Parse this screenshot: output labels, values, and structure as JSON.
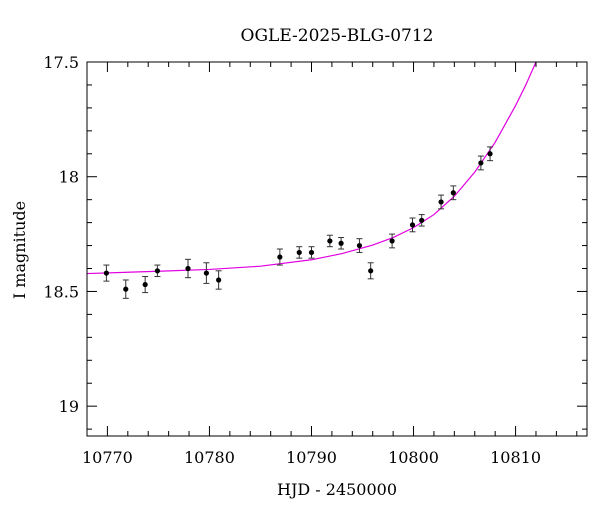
{
  "chart_data": {
    "type": "scatter",
    "title": "OGLE-2025-BLG-0712",
    "xlabel": "HJD - 2450000",
    "ylabel": "I magnitude",
    "xlim": [
      10768,
      10817
    ],
    "ylim": [
      17.5,
      19.13
    ],
    "y_inverted": true,
    "x_ticks": [
      10770,
      10780,
      10790,
      10800,
      10810
    ],
    "y_ticks": [
      17.5,
      18,
      18.5,
      19
    ],
    "x_tick_labels": [
      "10770",
      "10780",
      "10790",
      "10800",
      "10810"
    ],
    "y_tick_labels": [
      "17.5",
      "18",
      "18.5",
      "19"
    ],
    "x_minor_step": 2,
    "y_minor_step": 0.1,
    "grid": false,
    "legend": "none",
    "colors": {
      "points": "#000000",
      "model": "#e000e0",
      "axes": "#000000"
    },
    "series": [
      {
        "type": "errorbar",
        "x": [
          10769.9,
          10771.8,
          10773.7,
          10774.9,
          10777.9,
          10779.7,
          10780.9,
          10786.9,
          10788.8,
          10790.0,
          10791.8,
          10792.9,
          10794.7,
          10795.8,
          10797.9,
          10799.9,
          10800.8,
          10802.7,
          10803.9,
          10806.6,
          10807.5
        ],
        "y": [
          18.42,
          18.49,
          18.47,
          18.41,
          18.4,
          18.42,
          18.45,
          18.35,
          18.33,
          18.33,
          18.28,
          18.29,
          18.3,
          18.41,
          18.28,
          18.21,
          18.19,
          18.11,
          18.07,
          17.94,
          17.9
        ],
        "yerr": [
          0.035,
          0.04,
          0.035,
          0.025,
          0.04,
          0.045,
          0.04,
          0.035,
          0.025,
          0.025,
          0.025,
          0.025,
          0.03,
          0.035,
          0.03,
          0.03,
          0.025,
          0.03,
          0.03,
          0.03,
          0.03
        ]
      },
      {
        "type": "line",
        "x": [
          10768,
          10775,
          10780,
          10785,
          10790,
          10793,
          10796,
          10798,
          10800,
          10802,
          10804,
          10806,
          10808,
          10809,
          10810,
          10811,
          10811.5,
          10812
        ],
        "y": [
          18.422,
          18.412,
          18.404,
          18.39,
          18.362,
          18.335,
          18.298,
          18.265,
          18.222,
          18.165,
          18.085,
          17.98,
          17.85,
          17.77,
          17.69,
          17.6,
          17.55,
          17.5
        ]
      }
    ]
  }
}
